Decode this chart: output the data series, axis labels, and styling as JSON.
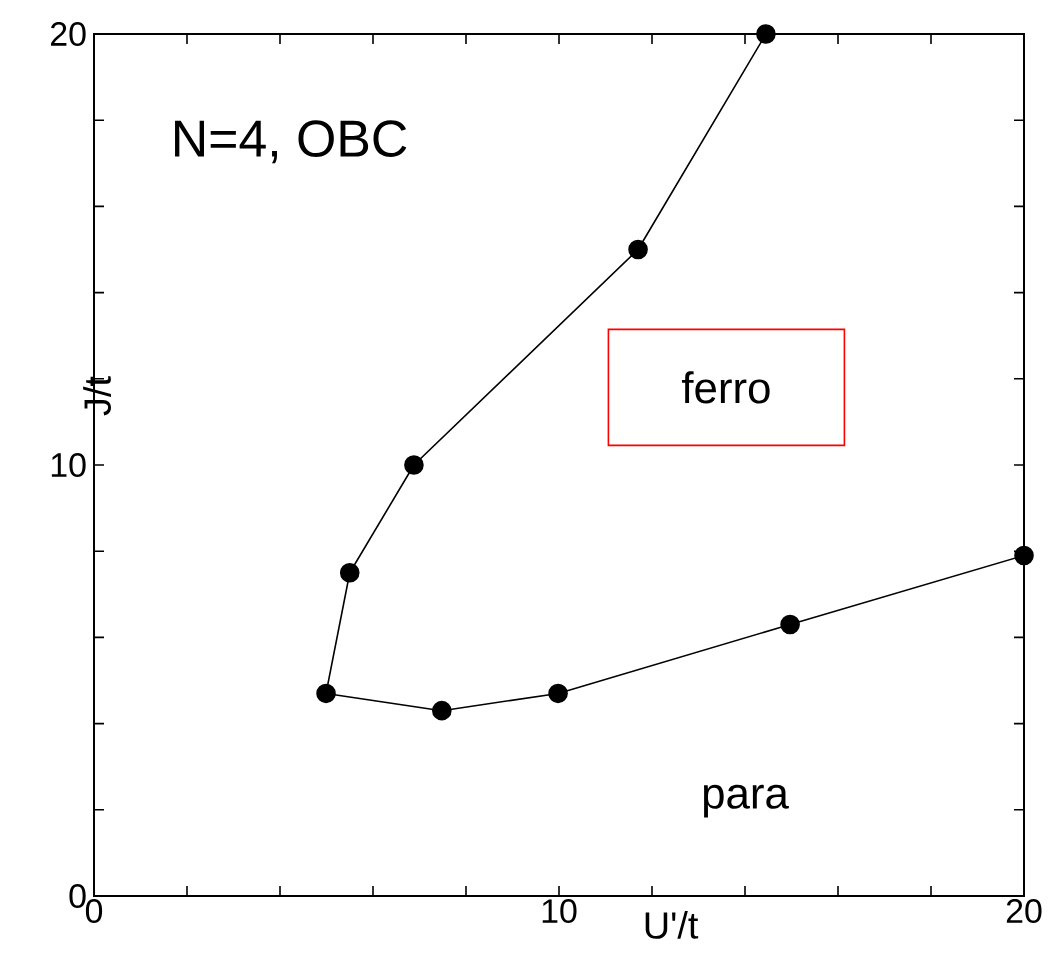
{
  "chart_data": {
    "type": "line",
    "xlabel": "U'/t",
    "ylabel": "J/t",
    "x": [
      14.45,
      11.7,
      6.88,
      5.5,
      4.99,
      7.48,
      9.98,
      14.97,
      20.0
    ],
    "series": [
      {
        "color": "#000000",
        "values": [
          20.0,
          15.0,
          10.0,
          7.5,
          4.7,
          4.3,
          4.7,
          6.3,
          7.9
        ]
      }
    ],
    "marker": "circle",
    "line_style": "solid",
    "xlim": [
      0,
      20
    ],
    "ylim": [
      0,
      20
    ],
    "xticks": [
      0,
      {
        "value": 2,
        "label": null
      },
      {
        "value": 4,
        "label": null
      },
      {
        "value": 6,
        "label": null
      },
      {
        "value": 8,
        "label": null
      },
      10,
      {
        "value": 12,
        "label": null
      },
      {
        "value": 14,
        "label": null
      },
      {
        "value": 16,
        "label": null
      },
      {
        "value": 18,
        "label": null
      },
      20
    ],
    "yticks": [
      0,
      {
        "value": 2,
        "label": null
      },
      {
        "value": 4,
        "label": null
      },
      {
        "value": 6,
        "label": null
      },
      {
        "value": 8,
        "label": null
      },
      10,
      {
        "value": 12,
        "label": null
      },
      {
        "value": 14,
        "label": null
      },
      {
        "value": 16,
        "label": null
      },
      {
        "value": 18,
        "label": null
      },
      20
    ],
    "annotations": [
      "N=4, OBC",
      "ferro",
      "para"
    ],
    "grid": false
  }
}
